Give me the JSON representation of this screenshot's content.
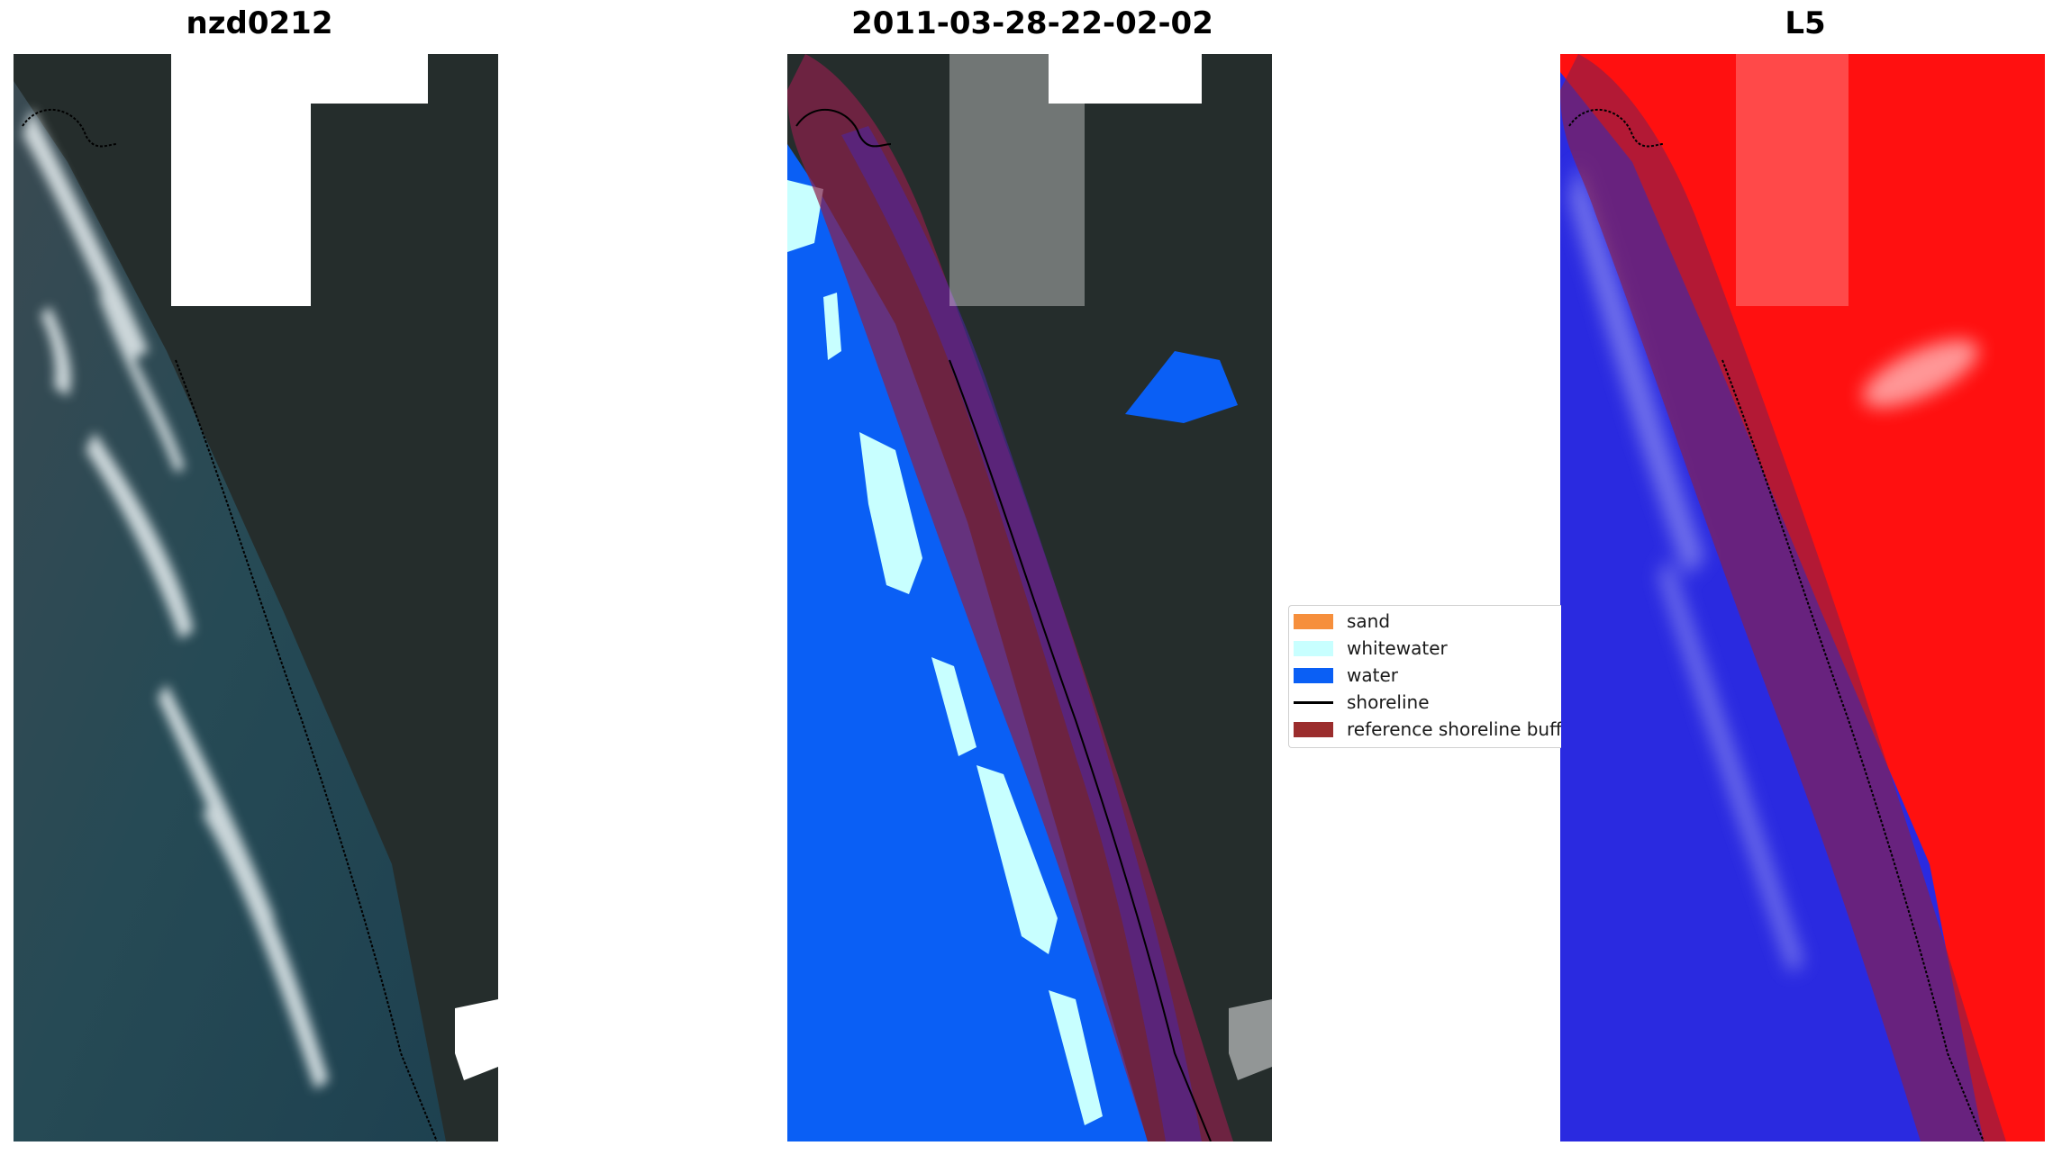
{
  "panels": [
    {
      "title": "nzd0212"
    },
    {
      "title": "2011-03-28-22-02-02"
    },
    {
      "title": "L5"
    }
  ],
  "legend": {
    "items": [
      {
        "label": "sand",
        "color": "#f68f3c",
        "kind": "patch"
      },
      {
        "label": "whitewater",
        "color": "#c8ffff",
        "kind": "patch"
      },
      {
        "label": "water",
        "color": "#0a5ff5",
        "kind": "patch"
      },
      {
        "label": "shoreline",
        "color": "#000000",
        "kind": "line"
      },
      {
        "label": "reference shoreline buffer",
        "color": "#9b2d2d",
        "kind": "patch"
      }
    ]
  },
  "colors": {
    "land_dark": "#26302c",
    "sea_teal": "#2a4a52",
    "cloud_white": "#ffffff",
    "buffer_overlay": "#8b1f4a",
    "index_red": "#ff0000",
    "index_blue": "#2020e6"
  }
}
